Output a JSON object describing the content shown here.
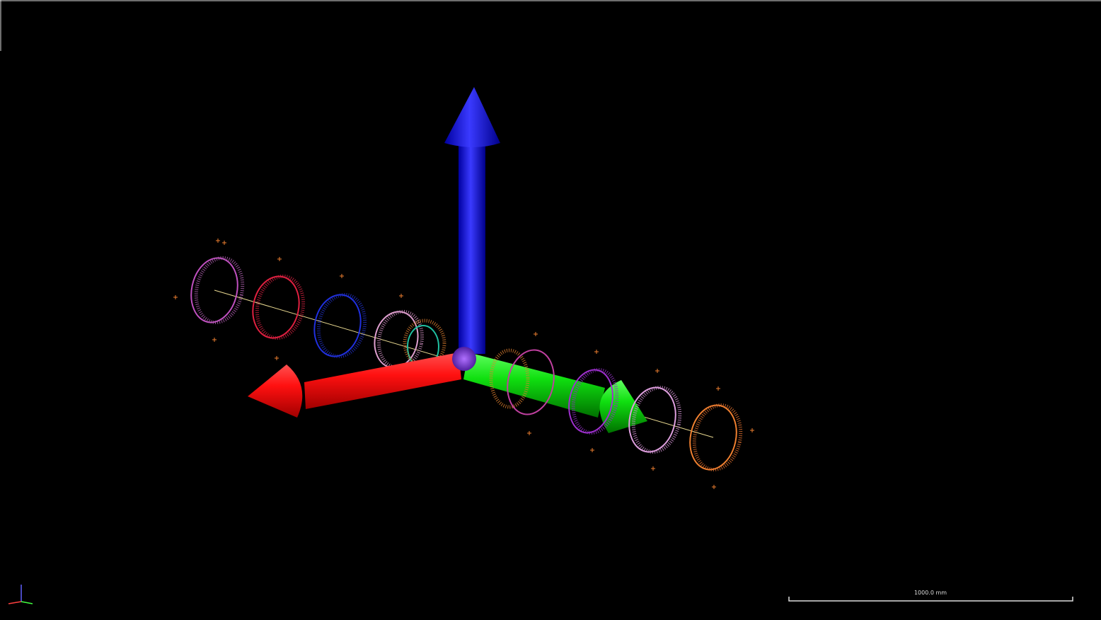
{
  "scale_bar": {
    "label": "1000.0 mm"
  }
}
